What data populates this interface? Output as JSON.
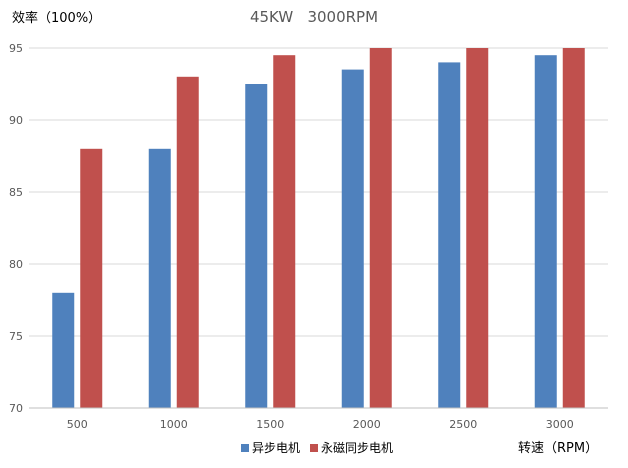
{
  "chart_data": {
    "type": "bar",
    "title": "45KW   3000RPM",
    "ylabel": "效率（100%）",
    "xlabel": "转速（RPM）",
    "categories": [
      "500",
      "1000",
      "1500",
      "2000",
      "2500",
      "3000"
    ],
    "series": [
      {
        "name": "异步电机",
        "color": "#4F81BD",
        "values": [
          78,
          88,
          92.5,
          93.5,
          94,
          94.5
        ]
      },
      {
        "name": "永磁同步电机",
        "color": "#C0504D",
        "values": [
          88,
          93,
          94.5,
          95,
          95,
          95
        ]
      }
    ],
    "ylim": [
      70,
      95
    ],
    "yticks": [
      70,
      75,
      80,
      85,
      90,
      95
    ],
    "grid": true,
    "legend_position": "bottom-center"
  }
}
